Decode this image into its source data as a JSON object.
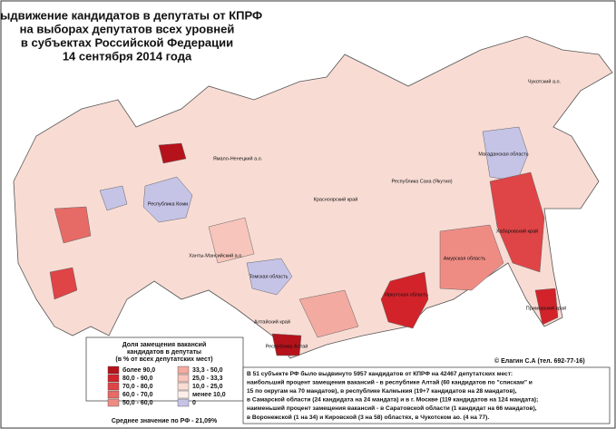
{
  "header": {
    "title_lines": [
      "Выдвижение кандидатов в депутаты от КПРФ",
      "на выборах депутатов всех уровней",
      "в субъектах Российской Федерации",
      "14 сентября 2014 года"
    ]
  },
  "regions": [
    "Республика Коми",
    "Ямало-Ненецкий а.о.",
    "Ханты-Мансийский а.о.",
    "Красноярский край",
    "Томская область",
    "Республика Саха (Якутия)",
    "Магаданская область",
    "Хабаровский край",
    "Амурская область",
    "Иркутская область",
    "Алтайский край",
    "Чукотский а.о.",
    "Республика Алтай",
    "Приморский край"
  ],
  "legend": {
    "title_lines": [
      "Доля замещения вакансий",
      "кандидатов в депутаты",
      "(в % от всех депутатских мест)"
    ],
    "items": [
      {
        "label": "более 90,0",
        "color": "#b5121b"
      },
      {
        "label": "80,0 - 90,0",
        "color": "#d2232a"
      },
      {
        "label": "70,0 - 80,0",
        "color": "#df4446"
      },
      {
        "label": "60,0 - 70,0",
        "color": "#e66a66"
      },
      {
        "label": "50,0 - 60,0",
        "color": "#ee8c84"
      },
      {
        "label": "33,3 - 50,0",
        "color": "#f3aaa0"
      },
      {
        "label": "25,0 - 33,3",
        "color": "#f7c5bb"
      },
      {
        "label": "10,0 - 25,0",
        "color": "#fadcd4"
      },
      {
        "label": "менее 10,0",
        "color": "#fdeee9"
      },
      {
        "label": "0",
        "color": "#c5c3e6"
      }
    ],
    "mean": "Среднее значение по РФ - 21,09%"
  },
  "copyright": "© Елагин С.А (тел. 692-77-16)",
  "note_lines": [
    "В 51 субъекте РФ было выдвинуто 5957 кандидатов от КПРФ на 42467 депутатских мест:",
    "наибольший процент замещения вакансий - в республике Алтай (60 кандидатов по \"спискам\" и",
    "15 по округам на 70 мандатов), в республике Калмыкия (19+7 кандидатов на 28 мандатов),",
    "в Самарской области (24 кандидата на 24 мандата) и в г. Москве (119 кандидатов на 124 мандата);",
    "наименьший процент замещения вакансий - в Саратовской области (1 кандидат на 66 мандатов),",
    "в Воронежской (1 на 34) и Кировской (3 на 58) областях, в Чукотском ао. (4 на 77)."
  ]
}
